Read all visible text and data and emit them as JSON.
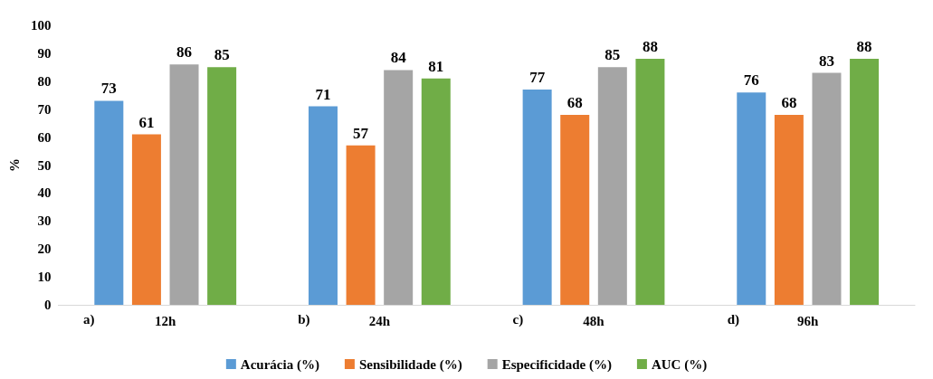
{
  "chart_data": {
    "type": "bar",
    "ylabel": "%",
    "categories": [
      "12h",
      "24h",
      "48h",
      "96h"
    ],
    "series": [
      {
        "name": "Acurácia (%)",
        "color": "#5b9bd5",
        "values": [
          73,
          71,
          77,
          76
        ]
      },
      {
        "name": "Sensibilidade (%)",
        "color": "#ed7d31",
        "values": [
          61,
          57,
          68,
          68
        ]
      },
      {
        "name": "Especificidade (%)",
        "color": "#a5a5a5",
        "values": [
          86,
          84,
          85,
          83
        ]
      },
      {
        "name": "AUC (%)",
        "color": "#70ad47",
        "values": [
          85,
          81,
          88,
          88
        ]
      }
    ],
    "ylim": [
      0,
      100
    ],
    "yticks": [
      0,
      10,
      20,
      30,
      40,
      50,
      60,
      70,
      80,
      90,
      100
    ],
    "grid": false,
    "legend": "bottom",
    "data_labels": true,
    "annotations": [
      "a)",
      "b)",
      "c)",
      "d)"
    ]
  }
}
